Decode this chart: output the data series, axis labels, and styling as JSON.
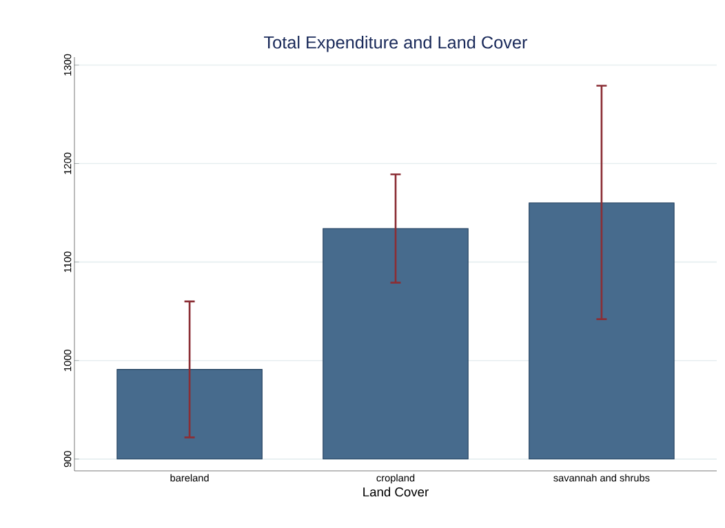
{
  "chart_data": {
    "type": "bar",
    "title": "Total Expenditure and Land Cover",
    "xlabel": "Land Cover",
    "categories": [
      "bareland",
      "cropland",
      "savannah and shrubs"
    ],
    "base": [
      900,
      900,
      900
    ],
    "values": [
      91,
      234,
      260
    ],
    "errors": [
      [
        922,
        1060
      ],
      [
        1079,
        1189
      ],
      [
        1042,
        1279
      ]
    ],
    "color": "#476b8d",
    "ylim": [
      888,
      1308
    ],
    "yticks": [
      900,
      1000,
      1100,
      1200,
      1300
    ],
    "grid": "y"
  }
}
